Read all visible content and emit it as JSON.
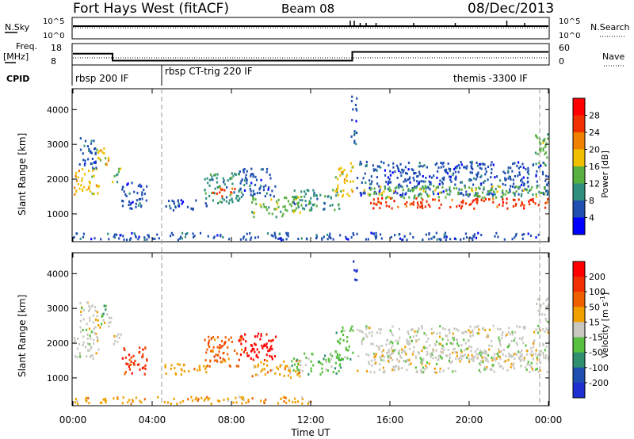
{
  "header": {
    "title": "Fort Hays West (fitACF)",
    "beam": "Beam 08",
    "date": "08/Dec/2013"
  },
  "top_panel": {
    "nsky_label": "N.Sky",
    "nsearch_label": "N.Search",
    "left_ticks": [
      "10^5",
      "10^0"
    ],
    "right_ticks": [
      "10^5",
      "10^0"
    ],
    "freq_label_1": "Freq.",
    "freq_label_2": "[MHz]",
    "freq_ticks": [
      "18",
      "8"
    ],
    "nave_label": "Nave",
    "nave_ticks": [
      "60",
      "0"
    ],
    "cpid_label": "CPID",
    "cpid_segments": [
      {
        "label": "rbsp 200 IF",
        "start_hour": 0
      },
      {
        "label": "rbsp CT-trig 220 IF",
        "start_hour": 4.6
      },
      {
        "label": "themis -3300 IF",
        "start_hour": 23.5
      }
    ],
    "freq_steps": [
      {
        "x": 0,
        "y": 14.5
      },
      {
        "x": 2.0,
        "y": 14.5
      },
      {
        "x": 2.0,
        "y": 10.5
      },
      {
        "x": 14.1,
        "y": 10.5
      },
      {
        "x": 14.1,
        "y": 15.5
      },
      {
        "x": 24,
        "y": 15.5
      }
    ]
  },
  "chart_data": [
    {
      "type": "heatmap",
      "name": "Power",
      "xlabel": "",
      "ylabel": "Slant Range [km]",
      "xlim": [
        0,
        24
      ],
      "ylim": [
        200,
        4600
      ],
      "y_ticks": [
        "1000",
        "2000",
        "3000",
        "4000"
      ],
      "colorbar": {
        "label": "Power [dB]",
        "ticks": [
          "4",
          "8",
          "12",
          "16",
          "20",
          "24",
          "28"
        ],
        "colors": [
          "#0000ff",
          "#1f4fb0",
          "#2f8f7f",
          "#58b040",
          "#f0c000",
          "#f08000",
          "#f03000",
          "#ff0000"
        ]
      },
      "regions": [
        {
          "t0": 0.0,
          "t1": 1.3,
          "r0": 1550,
          "r1": 2300,
          "c": 4
        },
        {
          "t0": 0.3,
          "t1": 1.2,
          "r0": 2300,
          "r1": 3200,
          "c": 1
        },
        {
          "t0": 1.1,
          "t1": 1.9,
          "r0": 2400,
          "r1": 2900,
          "c": 4
        },
        {
          "t0": 1.9,
          "t1": 2.4,
          "r0": 1900,
          "r1": 2300,
          "c": 3
        },
        {
          "t0": 2.4,
          "t1": 3.7,
          "r0": 1100,
          "r1": 1900,
          "c": 1
        },
        {
          "t0": 4.6,
          "t1": 6.8,
          "r0": 1100,
          "r1": 1400,
          "c": 1
        },
        {
          "t0": 6.6,
          "t1": 8.5,
          "r0": 1300,
          "r1": 2200,
          "c": 2
        },
        {
          "t0": 7.0,
          "t1": 8.2,
          "r0": 1500,
          "r1": 1750,
          "c": 6
        },
        {
          "t0": 8.3,
          "t1": 10.2,
          "r0": 1500,
          "r1": 2300,
          "c": 1
        },
        {
          "t0": 9.0,
          "t1": 11.5,
          "r0": 900,
          "r1": 1500,
          "c": 3
        },
        {
          "t0": 11.0,
          "t1": 13.5,
          "r0": 1100,
          "r1": 1700,
          "c": 2
        },
        {
          "t0": 13.2,
          "t1": 14.1,
          "r0": 1500,
          "r1": 2500,
          "c": 4
        },
        {
          "t0": 14.0,
          "t1": 14.3,
          "r0": 3000,
          "r1": 4400,
          "c": 1
        },
        {
          "t0": 14.3,
          "t1": 24.0,
          "r0": 1500,
          "r1": 2500,
          "c": 1
        },
        {
          "t0": 14.5,
          "t1": 24.0,
          "r0": 1450,
          "r1": 1800,
          "c": 3
        },
        {
          "t0": 15.0,
          "t1": 24.0,
          "r0": 1150,
          "r1": 1450,
          "c": 6
        },
        {
          "t0": 23.3,
          "t1": 24.0,
          "r0": 2300,
          "r1": 3300,
          "c": 3
        },
        {
          "t0": 0.0,
          "t1": 24.0,
          "r0": 250,
          "r1": 450,
          "c": 1
        }
      ]
    },
    {
      "type": "heatmap",
      "name": "Velocity",
      "xlabel": "Time UT",
      "ylabel": "Slant Range [km]",
      "xlim": [
        0,
        24
      ],
      "ylim": [
        200,
        4600
      ],
      "x_ticks": [
        "00:00",
        "04:00",
        "08:00",
        "12:00",
        "16:00",
        "20:00",
        "00:00"
      ],
      "y_ticks": [
        "1000",
        "2000",
        "3000",
        "4000"
      ],
      "colorbar": {
        "label": "Velocity [m s^-1]",
        "ticks": [
          "200",
          "100",
          "50",
          "15",
          "-15",
          "-50",
          "-100",
          "-200"
        ],
        "colors": [
          "#2030d0",
          "#1f4fb0",
          "#2f9070",
          "#58c040",
          "#c8c8c0",
          "#f0a000",
          "#f06000",
          "#f03000",
          "#ff0000"
        ]
      },
      "regions": [
        {
          "t0": 0.0,
          "t1": 1.3,
          "r0": 1550,
          "r1": 2300,
          "c": 4
        },
        {
          "t0": 0.3,
          "t1": 1.2,
          "r0": 2300,
          "r1": 3200,
          "c": 4
        },
        {
          "t0": 1.1,
          "t1": 1.9,
          "r0": 2400,
          "r1": 2900,
          "c": 4
        },
        {
          "t0": 1.4,
          "t1": 1.7,
          "r0": 2700,
          "r1": 3100,
          "c": 3
        },
        {
          "t0": 1.9,
          "t1": 2.4,
          "r0": 1900,
          "r1": 2300,
          "c": 4
        },
        {
          "t0": 2.4,
          "t1": 3.7,
          "r0": 1100,
          "r1": 1900,
          "c": 7
        },
        {
          "t0": 4.6,
          "t1": 6.8,
          "r0": 1100,
          "r1": 1400,
          "c": 5
        },
        {
          "t0": 6.6,
          "t1": 8.5,
          "r0": 1300,
          "r1": 2200,
          "c": 6
        },
        {
          "t0": 8.3,
          "t1": 10.2,
          "r0": 1500,
          "r1": 2300,
          "c": 8
        },
        {
          "t0": 9.0,
          "t1": 11.5,
          "r0": 1000,
          "r1": 1500,
          "c": 5
        },
        {
          "t0": 11.0,
          "t1": 13.5,
          "r0": 1100,
          "r1": 1700,
          "c": 3
        },
        {
          "t0": 13.2,
          "t1": 14.1,
          "r0": 1500,
          "r1": 2500,
          "c": 3
        },
        {
          "t0": 14.0,
          "t1": 14.3,
          "r0": 3800,
          "r1": 4400,
          "c": 0
        },
        {
          "t0": 14.3,
          "t1": 24.0,
          "r0": 1150,
          "r1": 2500,
          "c": 4
        },
        {
          "t0": 15.0,
          "t1": 24.0,
          "r0": 1450,
          "r1": 1800,
          "c": 4
        },
        {
          "t0": 23.3,
          "t1": 24.0,
          "r0": 2300,
          "r1": 3300,
          "c": 4
        },
        {
          "t0": 0.0,
          "t1": 12.0,
          "r0": 250,
          "r1": 450,
          "c": 5
        }
      ]
    }
  ]
}
